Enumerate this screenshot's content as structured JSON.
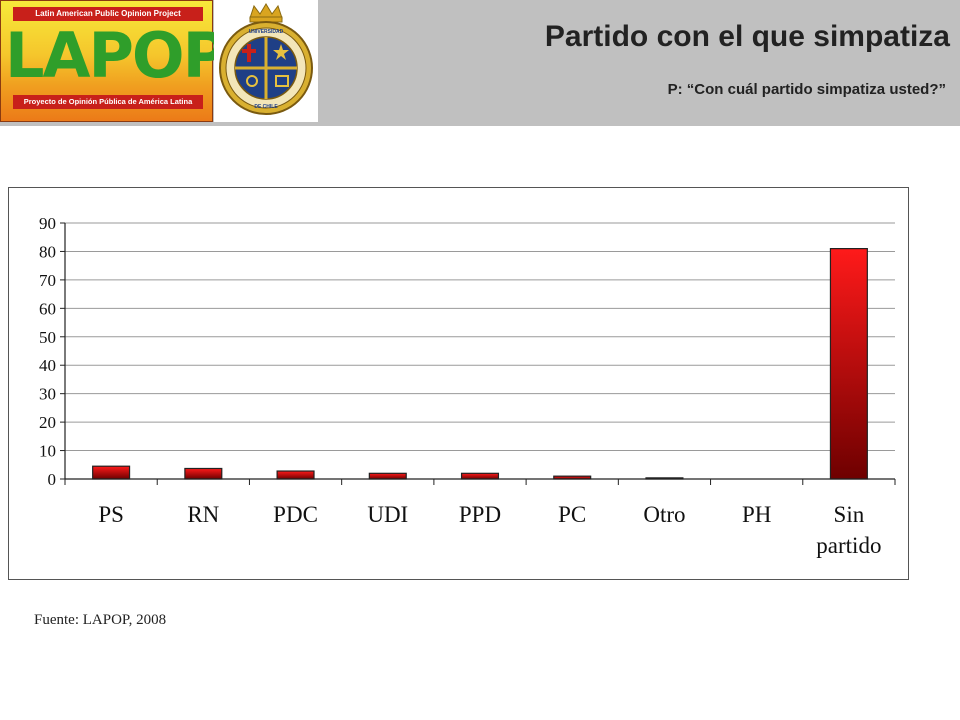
{
  "header": {
    "title": "Partido con el que simpatiza",
    "subtitle": "P: “Con cuál partido simpatiza usted?”",
    "lapop_logo": {
      "top_text": "Latin American Public Opinion Project",
      "main_text": "LAPOP",
      "bottom_text": "Proyecto de Opinión Pública de América Latina"
    },
    "seal_logo": {
      "text": "PONTIFICIA UNIVERSIDAD CATÓLICA DE CHILE"
    }
  },
  "colors": {
    "header_bg": "#c0c0c0",
    "bar_top": "#ff1a1a",
    "bar_bottom": "#6e0000",
    "grid": "#9a9a9a"
  },
  "chart_data": {
    "type": "bar",
    "categories": [
      "PS",
      "RN",
      "PDC",
      "UDI",
      "PPD",
      "PC",
      "Otro",
      "PH",
      "Sin partido"
    ],
    "category_lines": [
      [
        "PS"
      ],
      [
        "RN"
      ],
      [
        "PDC"
      ],
      [
        "UDI"
      ],
      [
        "PPD"
      ],
      [
        "PC"
      ],
      [
        "Otro"
      ],
      [
        "PH"
      ],
      [
        "Sin",
        "partido"
      ]
    ],
    "values": [
      4.5,
      3.7,
      2.8,
      2.0,
      2.0,
      1.0,
      0.4,
      0.0,
      81.0
    ],
    "ylim": [
      0,
      90
    ],
    "yticks": [
      0,
      10,
      20,
      30,
      40,
      50,
      60,
      70,
      80,
      90
    ],
    "grid": true,
    "legend": "none",
    "title": "",
    "xlabel": "",
    "ylabel": ""
  },
  "footer": {
    "source": "Fuente: LAPOP, 2008"
  }
}
